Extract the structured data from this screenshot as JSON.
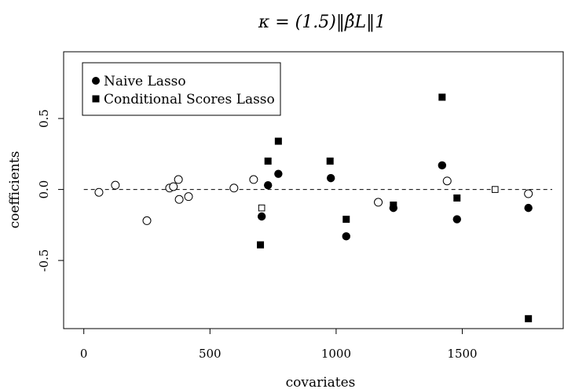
{
  "chart_data": {
    "type": "scatter",
    "title": "κ = (1.5)‖β̂L‖1",
    "xlabel": "covariates",
    "ylabel": "coefficients",
    "xlim": [
      -80,
      1900
    ],
    "ylim": [
      -0.98,
      0.97
    ],
    "xticks": [
      0,
      500,
      1000,
      1500
    ],
    "xtick_labels": [
      "0",
      "500",
      "1000",
      "1500"
    ],
    "yticks": [
      -0.5,
      0.0,
      0.5
    ],
    "ytick_labels": [
      "-0.5",
      "0.0",
      "0.5"
    ],
    "reference_line": {
      "y": 0.0,
      "style": "dashed"
    },
    "legend": {
      "placement": "top-left",
      "entries": [
        {
          "label": "Naive Lasso",
          "marker": "filled-circle"
        },
        {
          "label": "Conditional Scores Lasso",
          "marker": "filled-square"
        }
      ]
    },
    "series": [
      {
        "name": "Naive Lasso",
        "marker": "filled-circle",
        "points": [
          {
            "x": 705,
            "y": -0.19
          },
          {
            "x": 730,
            "y": 0.03
          },
          {
            "x": 771,
            "y": 0.11
          },
          {
            "x": 979,
            "y": 0.08
          },
          {
            "x": 1040,
            "y": -0.33
          },
          {
            "x": 1227,
            "y": -0.13
          },
          {
            "x": 1420,
            "y": 0.17
          },
          {
            "x": 1479,
            "y": -0.21
          },
          {
            "x": 1762,
            "y": -0.13
          }
        ]
      },
      {
        "name": "Conditional Scores Lasso",
        "marker": "filled-square",
        "points": [
          {
            "x": 700,
            "y": -0.39
          },
          {
            "x": 730,
            "y": 0.2
          },
          {
            "x": 771,
            "y": 0.34
          },
          {
            "x": 976,
            "y": 0.2
          },
          {
            "x": 1040,
            "y": -0.21
          },
          {
            "x": 1227,
            "y": -0.11
          },
          {
            "x": 1420,
            "y": 0.65
          },
          {
            "x": 1479,
            "y": -0.06
          },
          {
            "x": 1762,
            "y": -0.91
          }
        ]
      },
      {
        "name": "",
        "marker": "open-circle",
        "points": [
          {
            "x": 60,
            "y": -0.02
          },
          {
            "x": 125,
            "y": 0.03
          },
          {
            "x": 250,
            "y": -0.22
          },
          {
            "x": 340,
            "y": 0.01
          },
          {
            "x": 355,
            "y": 0.02
          },
          {
            "x": 375,
            "y": 0.07
          },
          {
            "x": 378,
            "y": -0.07
          },
          {
            "x": 415,
            "y": -0.05
          },
          {
            "x": 595,
            "y": 0.01
          },
          {
            "x": 673,
            "y": 0.07
          },
          {
            "x": 1167,
            "y": -0.09
          },
          {
            "x": 1440,
            "y": 0.06
          },
          {
            "x": 1762,
            "y": -0.03
          }
        ]
      },
      {
        "name": "",
        "marker": "open-square",
        "points": [
          {
            "x": 705,
            "y": -0.13
          },
          {
            "x": 1630,
            "y": 0.0
          }
        ]
      }
    ]
  }
}
